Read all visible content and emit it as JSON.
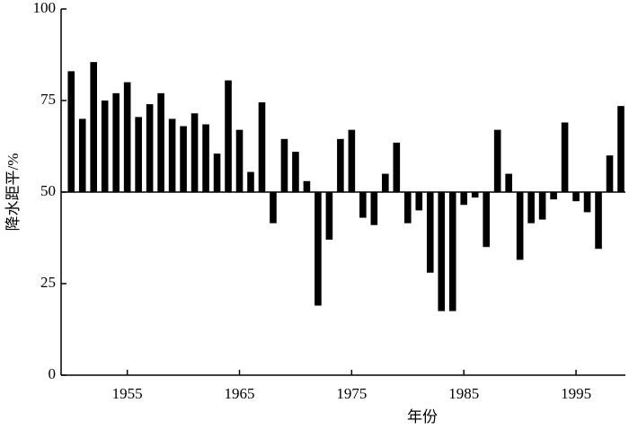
{
  "chart_data": {
    "type": "bar",
    "xlabel": "年份",
    "ylabel": "降水距平/%",
    "x": [
      1950,
      1951,
      1952,
      1953,
      1954,
      1955,
      1956,
      1957,
      1958,
      1959,
      1960,
      1961,
      1962,
      1963,
      1964,
      1965,
      1966,
      1967,
      1968,
      1969,
      1970,
      1971,
      1972,
      1973,
      1974,
      1975,
      1976,
      1977,
      1978,
      1979,
      1980,
      1981,
      1982,
      1983,
      1984,
      1985,
      1986,
      1987,
      1988,
      1989,
      1990,
      1991,
      1992,
      1993,
      1994,
      1995,
      1996,
      1997,
      1998,
      1999
    ],
    "values": [
      83,
      70,
      85.5,
      75,
      77,
      80,
      70.5,
      74,
      77,
      70,
      68,
      71.5,
      68.5,
      60.5,
      80.5,
      67,
      55.5,
      74.5,
      41.5,
      64.5,
      61,
      53,
      19,
      37,
      64.5,
      67,
      43,
      41,
      55,
      63.5,
      41.5,
      45,
      28,
      17.5,
      17.5,
      46.5,
      48.5,
      35,
      67,
      55,
      31.5,
      41.5,
      42.5,
      48,
      69,
      47.5,
      44.5,
      34.5,
      60,
      73.5
    ],
    "baseline": 50,
    "color": "#000000",
    "xlim": [
      1949.1,
      1999.4
    ],
    "xticks": [
      1955,
      1965,
      1975,
      1985,
      1995
    ],
    "ylim": [
      0,
      100
    ],
    "yticks": [
      0,
      25,
      50,
      75,
      100
    ]
  }
}
